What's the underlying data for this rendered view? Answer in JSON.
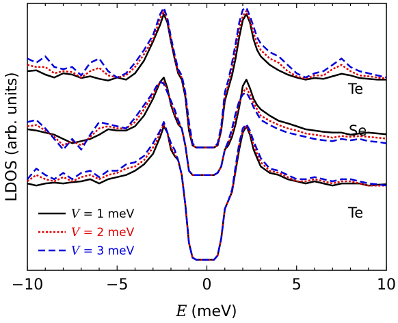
{
  "chart_data": {
    "type": "line",
    "xlabel_var": "E",
    "xlabel_unit": "(meV)",
    "ylabel": "LDOS (arb. units)",
    "xlim": [
      -10,
      10
    ],
    "xticks": [
      -10,
      -5,
      0,
      5,
      10
    ],
    "xtick_labels": [
      "−10",
      "−5",
      "0",
      "5",
      "10"
    ],
    "y_units": "arbitrary (curves vertically offset)",
    "curve_labels": [
      "Te",
      "Se",
      "Te"
    ],
    "legend": {
      "placement": "lower-left",
      "entries": [
        {
          "var": "V",
          "text": " = 1 meV",
          "color": "#000000",
          "dash": "solid"
        },
        {
          "var": "V",
          "text": " = 2 meV",
          "color": "#e00000",
          "dash": "dotted"
        },
        {
          "var": "V",
          "text": " = 3 meV",
          "color": "#0000dd",
          "dash": "dashed"
        }
      ]
    },
    "offsets": [
      3.0,
      1.75,
      0.55
    ],
    "series": [
      {
        "name": "V = 1 meV",
        "color": "#000000",
        "dash": "solid",
        "x": [
          -10,
          -9.5,
          -9,
          -8.5,
          -8,
          -7.5,
          -7,
          -6.5,
          -6,
          -5.5,
          -5,
          -4.5,
          -4,
          -3.5,
          -3,
          -2.8,
          -2.6,
          -2.4,
          -2.2,
          -2.0,
          -1.8,
          -1.6,
          -1.4,
          -1.2,
          -1.0,
          -0.8,
          -0.6,
          -0.4,
          -0.2,
          0,
          0.2,
          0.4,
          0.6,
          0.8,
          1.0,
          1.2,
          1.4,
          1.6,
          1.8,
          2.0,
          2.2,
          2.4,
          2.6,
          2.8,
          3.0,
          3.5,
          4,
          4.5,
          5,
          5.5,
          6,
          6.5,
          7,
          7.5,
          8,
          8.5,
          9,
          9.5,
          10
        ],
        "panels": [
          [
            0.2,
            0.22,
            0.12,
            0.05,
            0.15,
            0.12,
            0.04,
            0.08,
            0.02,
            -0.02,
            0.05,
            0.0,
            0.15,
            0.45,
            0.9,
            1.1,
            1.3,
            1.55,
            1.35,
            0.9,
            0.5,
            0.15,
            0.0,
            -0.4,
            -1.2,
            -1.55,
            -1.6,
            -1.6,
            -1.6,
            -1.6,
            -1.6,
            -1.6,
            -1.55,
            -1.2,
            -0.5,
            -0.2,
            0.1,
            0.5,
            1.0,
            1.4,
            1.55,
            1.35,
            0.95,
            0.7,
            0.55,
            0.35,
            0.22,
            0.12,
            0.05,
            0.0,
            0.04,
            0.02,
            0.08,
            0.14,
            0.1,
            0.04,
            0.02,
            0.0,
            0.0
          ],
          [
            0.08,
            0.05,
            0.0,
            -0.05,
            -0.15,
            -0.25,
            -0.2,
            -0.15,
            -0.05,
            0.08,
            0.05,
            0.05,
            0.15,
            0.4,
            0.8,
            1.0,
            1.2,
            1.3,
            1.05,
            0.65,
            0.4,
            0.2,
            0.1,
            -0.3,
            -0.9,
            -1.0,
            -1.0,
            -1.0,
            -1.0,
            -1.0,
            -1.0,
            -1.0,
            -0.95,
            -0.8,
            -0.4,
            -0.3,
            -0.1,
            0.2,
            0.6,
            1.1,
            1.25,
            1.05,
            0.8,
            0.65,
            0.55,
            0.4,
            0.28,
            0.22,
            0.15,
            0.08,
            0.05,
            0.02,
            0.0,
            0.0,
            -0.05,
            -0.02,
            0.0,
            -0.02,
            -0.04
          ],
          [
            0.0,
            -0.05,
            0.0,
            0.02,
            0.0,
            0.03,
            0.05,
            0.1,
            0.0,
            0.1,
            0.15,
            0.2,
            0.3,
            0.45,
            0.7,
            0.9,
            1.1,
            1.35,
            1.2,
            0.8,
            0.65,
            0.55,
            0.2,
            -0.5,
            -1.4,
            -1.75,
            -1.8,
            -1.8,
            -1.8,
            -1.8,
            -1.8,
            -1.8,
            -1.7,
            -1.3,
            -0.6,
            -0.4,
            -0.2,
            0.3,
            0.8,
            1.2,
            1.35,
            1.15,
            0.8,
            0.6,
            0.4,
            0.25,
            0.2,
            0.1,
            0.05,
            0.0,
            0.05,
            0.0,
            -0.05,
            0.0,
            0.0,
            0.0,
            -0.05,
            -0.03,
            -0.02
          ]
        ]
      },
      {
        "name": "V = 2 meV",
        "color": "#e00000",
        "dash": "dotted",
        "x": [
          -10,
          -9.5,
          -9,
          -8.5,
          -8,
          -7.5,
          -7,
          -6.5,
          -6,
          -5.5,
          -5,
          -4.5,
          -4,
          -3.5,
          -3,
          -2.8,
          -2.6,
          -2.4,
          -2.2,
          -2.0,
          -1.8,
          -1.6,
          -1.4,
          -1.2,
          -1.0,
          -0.8,
          -0.6,
          -0.4,
          -0.2,
          0,
          0.2,
          0.4,
          0.6,
          0.8,
          1.0,
          1.2,
          1.4,
          1.6,
          1.8,
          2.0,
          2.2,
          2.4,
          2.6,
          2.8,
          3.0,
          3.5,
          4,
          4.5,
          5,
          5.5,
          6,
          6.5,
          7,
          7.5,
          8,
          8.5,
          9,
          9.5,
          10
        ],
        "panels": [
          [
            0.35,
            0.3,
            0.3,
            0.15,
            0.2,
            0.18,
            0.05,
            0.2,
            0.28,
            0.1,
            0.05,
            0.1,
            0.3,
            0.6,
            0.95,
            1.2,
            1.45,
            1.62,
            1.4,
            0.95,
            0.55,
            0.2,
            0.05,
            -0.35,
            -1.1,
            -1.55,
            -1.6,
            -1.6,
            -1.6,
            -1.6,
            -1.6,
            -1.6,
            -1.55,
            -1.15,
            -0.4,
            -0.1,
            0.3,
            0.7,
            1.2,
            1.5,
            1.62,
            1.4,
            1.1,
            0.85,
            0.7,
            0.5,
            0.4,
            0.2,
            0.08,
            0.02,
            0.1,
            0.1,
            0.25,
            0.35,
            0.2,
            0.1,
            0.08,
            0.05,
            0.03
          ],
          [
            0.15,
            0.18,
            0.05,
            -0.1,
            -0.3,
            -0.2,
            -0.3,
            -0.1,
            0.1,
            0.15,
            0.1,
            0.1,
            0.25,
            0.55,
            0.9,
            1.05,
            1.2,
            1.2,
            1.0,
            0.7,
            0.45,
            0.25,
            0.1,
            -0.3,
            -0.9,
            -1.0,
            -1.0,
            -1.0,
            -1.0,
            -1.0,
            -1.0,
            -1.0,
            -0.95,
            -0.8,
            -0.4,
            -0.25,
            0.0,
            0.35,
            0.7,
            0.95,
            1.05,
            0.9,
            0.7,
            0.55,
            0.4,
            0.28,
            0.18,
            0.1,
            0.05,
            -0.02,
            -0.05,
            -0.08,
            -0.12,
            -0.08,
            -0.1,
            -0.08,
            -0.1,
            -0.12,
            -0.14
          ],
          [
            0.05,
            0.2,
            0.1,
            0.05,
            0.15,
            0.05,
            0.15,
            0.2,
            0.1,
            0.2,
            0.25,
            0.35,
            0.4,
            0.55,
            0.85,
            1.0,
            1.2,
            1.4,
            1.2,
            0.85,
            0.7,
            0.55,
            0.2,
            -0.5,
            -1.4,
            -1.75,
            -1.8,
            -1.8,
            -1.8,
            -1.8,
            -1.8,
            -1.8,
            -1.7,
            -1.3,
            -0.6,
            -0.4,
            -0.2,
            0.35,
            0.9,
            1.25,
            1.35,
            1.2,
            0.9,
            0.7,
            0.5,
            0.3,
            0.25,
            0.15,
            0.05,
            0.05,
            0.1,
            0.05,
            0.0,
            0.05,
            0.05,
            0.0,
            -0.05,
            -0.05,
            -0.05
          ]
        ]
      },
      {
        "name": "V = 3 meV",
        "color": "#0000dd",
        "dash": "dashed",
        "x": [
          -10,
          -9.5,
          -9,
          -8.5,
          -8,
          -7.5,
          -7,
          -6.5,
          -6,
          -5.5,
          -5,
          -4.5,
          -4,
          -3.5,
          -3,
          -2.8,
          -2.6,
          -2.4,
          -2.2,
          -2.0,
          -1.8,
          -1.6,
          -1.4,
          -1.2,
          -1.0,
          -0.8,
          -0.6,
          -0.4,
          -0.2,
          0,
          0.2,
          0.4,
          0.6,
          0.8,
          1.0,
          1.2,
          1.4,
          1.6,
          1.8,
          2.0,
          2.2,
          2.4,
          2.6,
          2.8,
          3.0,
          3.5,
          4,
          4.5,
          5,
          5.5,
          6,
          6.5,
          7,
          7.5,
          8,
          8.5,
          9,
          9.5,
          10
        ],
        "panels": [
          [
            0.5,
            0.4,
            0.55,
            0.3,
            0.25,
            0.3,
            0.1,
            0.4,
            0.5,
            0.2,
            0.05,
            0.15,
            0.4,
            0.7,
            1.05,
            1.3,
            1.55,
            1.7,
            1.45,
            1.0,
            0.6,
            0.25,
            0.1,
            -0.3,
            -1.0,
            -1.5,
            -1.6,
            -1.6,
            -1.6,
            -1.6,
            -1.6,
            -1.6,
            -1.5,
            -1.1,
            -0.3,
            0.0,
            0.4,
            0.85,
            1.35,
            1.65,
            1.7,
            1.5,
            1.25,
            1.0,
            0.85,
            0.65,
            0.55,
            0.35,
            0.15,
            0.05,
            0.15,
            0.2,
            0.35,
            0.5,
            0.3,
            0.2,
            0.15,
            0.1,
            0.05
          ],
          [
            0.25,
            0.3,
            0.1,
            -0.15,
            -0.4,
            -0.15,
            -0.4,
            -0.05,
            0.25,
            0.2,
            0.15,
            0.1,
            0.35,
            0.65,
            0.95,
            1.1,
            1.2,
            1.15,
            0.95,
            0.75,
            0.55,
            0.3,
            0.1,
            -0.3,
            -0.9,
            -1.0,
            -1.0,
            -1.0,
            -1.0,
            -1.0,
            -1.0,
            -1.0,
            -0.95,
            -0.8,
            -0.4,
            -0.2,
            0.1,
            0.45,
            0.75,
            0.9,
            0.95,
            0.8,
            0.6,
            0.45,
            0.3,
            0.18,
            0.08,
            0.0,
            -0.05,
            -0.1,
            -0.15,
            -0.18,
            -0.2,
            -0.15,
            -0.18,
            -0.15,
            -0.2,
            -0.22,
            -0.25
          ],
          [
            0.1,
            0.35,
            0.2,
            0.1,
            0.25,
            0.1,
            0.25,
            0.3,
            0.15,
            0.3,
            0.3,
            0.45,
            0.5,
            0.65,
            0.95,
            1.1,
            1.25,
            1.45,
            1.2,
            0.95,
            0.8,
            0.55,
            0.2,
            -0.5,
            -1.4,
            -1.75,
            -1.8,
            -1.8,
            -1.8,
            -1.8,
            -1.8,
            -1.8,
            -1.7,
            -1.3,
            -0.6,
            -0.4,
            -0.15,
            0.4,
            0.95,
            1.3,
            1.4,
            1.25,
            1.0,
            0.8,
            0.6,
            0.35,
            0.3,
            0.2,
            0.1,
            0.1,
            0.15,
            0.1,
            0.05,
            0.1,
            0.1,
            0.05,
            0.0,
            -0.02,
            -0.05
          ]
        ]
      }
    ]
  }
}
